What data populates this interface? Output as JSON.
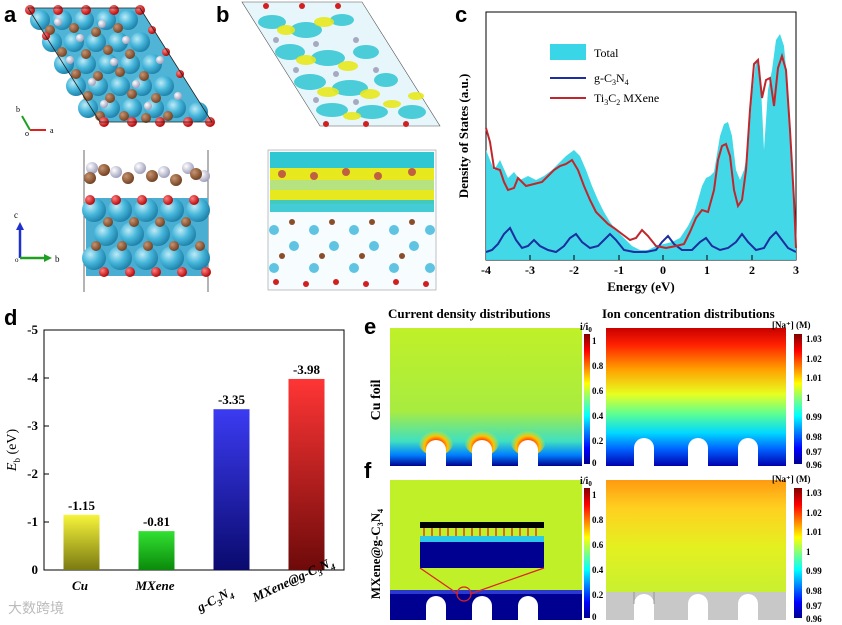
{
  "panels": {
    "a": "a",
    "b": "b",
    "c": "c",
    "d": "d",
    "e": "e",
    "f": "f"
  },
  "panel_a": {
    "axes_top": [
      "b",
      "o",
      "a"
    ],
    "axes_bottom": [
      "c",
      "o",
      "b"
    ]
  },
  "panel_c": {
    "xlabel": "Energy (eV)",
    "ylabel": "Density of States (a.u.)",
    "xticks": [
      "-4",
      "-3",
      "-2",
      "-1",
      "0",
      "1",
      "2",
      "3"
    ],
    "legend": {
      "total": "Total",
      "gcn": "g-C",
      "gcn_sub": "3",
      "gcn_n": "N",
      "gcn_sub2": "4",
      "mx": "Ti",
      "mx_sub": "3",
      "mx_c": "C",
      "mx_sub2": "2",
      "mx_tail": " MXene"
    },
    "colors": {
      "total": "#38d6e6",
      "gcn": "#1d2e9e",
      "mx": "#c0272d"
    }
  },
  "chart_data": {
    "type": "bar",
    "title": "",
    "xlabel": "",
    "ylabel": "E_b (eV)",
    "ylabel_main": "E",
    "ylabel_sub": "b",
    "ylabel_unit": " (eV)",
    "ylim": [
      -5,
      0
    ],
    "yticks": [
      "-5",
      "-4",
      "-3",
      "-2",
      "-1",
      "0"
    ],
    "categories": [
      "Cu",
      "MXene",
      "g-C3N4",
      "MXene@g-C3N4"
    ],
    "values": [
      -1.15,
      -0.81,
      -3.35,
      -3.98
    ],
    "value_labels": [
      "-1.15",
      "-0.81",
      "-3.35",
      "-3.98"
    ],
    "colors": [
      "#e6e21a",
      "#1ec81e",
      "#2a2ae0",
      "#d81e1e"
    ]
  },
  "x_cat_labels": {
    "cu": "Cu",
    "mx": "MXene",
    "gcn_main": "g-C",
    "gcn_s1": "3",
    "gcn_n": "N",
    "gcn_s2": "4",
    "mxg_main": "MXene@g-C",
    "mxg_s1": "3",
    "mxg_n": "N",
    "mxg_s2": "4"
  },
  "panel_e": {
    "title_left": "Current density distributions",
    "title_right": "Ion concentration distributions",
    "row_label": "Cu foil",
    "cb_left_title_main": "i/i",
    "cb_left_title_sub": "0",
    "cb_left_ticks": [
      "1",
      "0.8",
      "0.6",
      "0.4",
      "0.2",
      "0"
    ],
    "cb_right_title": "[Na⁺] (M)",
    "cb_right_ticks": [
      "1.03",
      "1.02",
      "1.01",
      "1",
      "0.99",
      "0.98",
      "0.97",
      "0.96"
    ]
  },
  "panel_f": {
    "row_label": "MXene@g-C",
    "row_label_sub1": "3",
    "row_label_n": "N",
    "row_label_sub2": "4",
    "cb_left_title_main": "i/i",
    "cb_left_title_sub": "0",
    "cb_left_ticks": [
      "1",
      "0.8",
      "0.6",
      "0.4",
      "0.2",
      "0"
    ],
    "cb_right_title": "[Na⁺] (M)",
    "cb_right_ticks": [
      "1.03",
      "1.02",
      "1.01",
      "1",
      "0.99",
      "0.98",
      "0.97",
      "0.96"
    ]
  },
  "watermark": "大数跨境"
}
